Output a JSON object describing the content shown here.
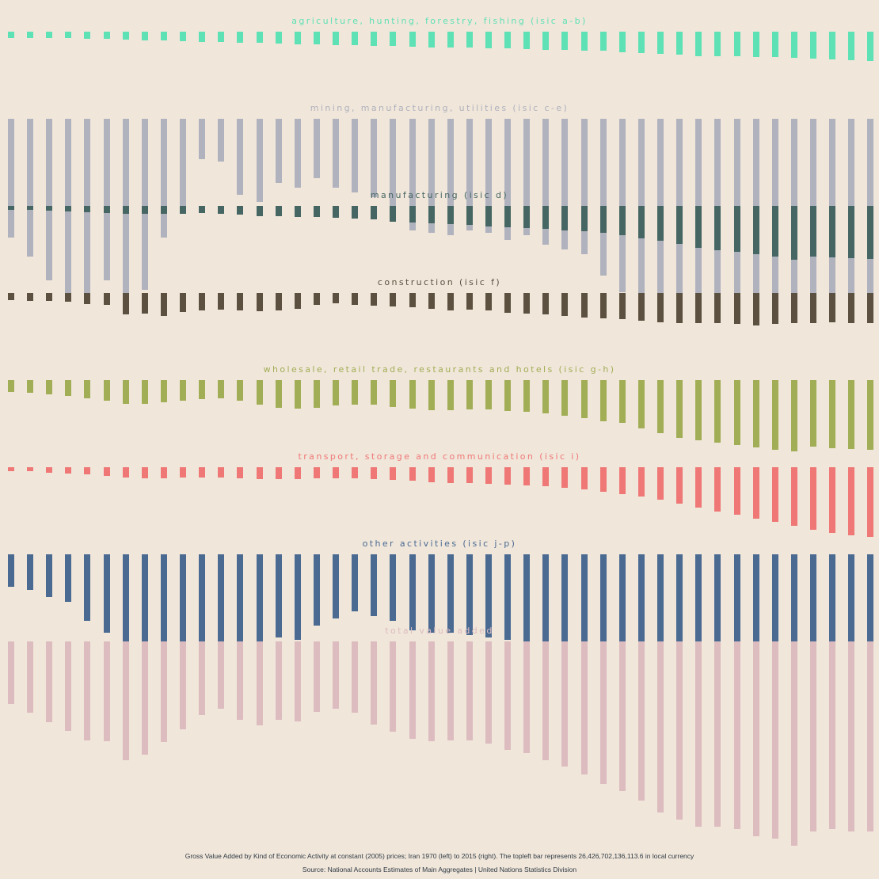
{
  "chart_data": [
    {
      "type": "bar",
      "title": "AGRICULTURE, HUNTING, FORESTRY, FISHING (ISIC A-B)",
      "color": "#5EE1B5",
      "x": [
        1970,
        1971,
        1972,
        1973,
        1974,
        1975,
        1976,
        1977,
        1978,
        1979,
        1980,
        1981,
        1982,
        1983,
        1984,
        1985,
        1986,
        1987,
        1988,
        1989,
        1990,
        1991,
        1992,
        1993,
        1994,
        1995,
        1996,
        1997,
        1998,
        1999,
        2000,
        2001,
        2002,
        2003,
        2004,
        2005,
        2006,
        2007,
        2008,
        2009,
        2010,
        2011,
        2012,
        2013,
        2014,
        2015
      ],
      "values": [
        2.5,
        2.6,
        2.7,
        2.8,
        3.0,
        3.1,
        3.3,
        3.6,
        3.7,
        4.0,
        4.2,
        4.4,
        4.6,
        4.8,
        5.0,
        5.2,
        5.4,
        5.6,
        5.7,
        5.9,
        6.1,
        6.3,
        6.5,
        6.6,
        6.8,
        6.9,
        7.1,
        7.3,
        7.5,
        7.6,
        7.9,
        8.1,
        8.5,
        8.9,
        9.3,
        9.8,
        10.3,
        10.2,
        10.3,
        10.7,
        10.8,
        11.0,
        11.3,
        11.6,
        11.9,
        12.2
      ]
    },
    {
      "type": "bar",
      "title": "MINING, MANUFACTURING, UTILITIES (ISIC C-E)",
      "color": "#B0B2BE",
      "x": [
        1970,
        1971,
        1972,
        1973,
        1974,
        1975,
        1976,
        1977,
        1978,
        1979,
        1980,
        1981,
        1982,
        1983,
        1984,
        1985,
        1986,
        1987,
        1988,
        1989,
        1990,
        1991,
        1992,
        1993,
        1994,
        1995,
        1996,
        1997,
        1998,
        1999,
        2000,
        2001,
        2002,
        2003,
        2004,
        2005,
        2006,
        2007,
        2008,
        2009,
        2010,
        2011,
        2012,
        2013,
        2014,
        2015
      ],
      "values": [
        50,
        58,
        68,
        77,
        76,
        68,
        79,
        72,
        50,
        38,
        17,
        18,
        32,
        35,
        27,
        29,
        25,
        29,
        31,
        33,
        40,
        47,
        48,
        49,
        47,
        48,
        51,
        49,
        53,
        55,
        57,
        66,
        73,
        74,
        76,
        78,
        79,
        80,
        84,
        86,
        78,
        76,
        79,
        79,
        79,
        79
      ]
    },
    {
      "type": "bar",
      "title": "MANUFACTURING (ISIC D)",
      "color": "#466663",
      "x": [
        1970,
        1971,
        1972,
        1973,
        1974,
        1975,
        1976,
        1977,
        1978,
        1979,
        1980,
        1981,
        1982,
        1983,
        1984,
        1985,
        1986,
        1987,
        1988,
        1989,
        1990,
        1991,
        1992,
        1993,
        1994,
        1995,
        1996,
        1997,
        1998,
        1999,
        2000,
        2001,
        2002,
        2003,
        2004,
        2005,
        2006,
        2007,
        2008,
        2009,
        2010,
        2011,
        2012,
        2013,
        2014,
        2015
      ],
      "values": [
        1.5,
        1.7,
        2.0,
        2.3,
        2.7,
        3.0,
        3.2,
        3.3,
        3.3,
        3.2,
        3.1,
        3.3,
        3.8,
        4.2,
        4.3,
        4.6,
        4.8,
        5.0,
        5.4,
        5.8,
        6.5,
        7.0,
        7.4,
        7.8,
        8.1,
        8.5,
        8.9,
        9.3,
        9.7,
        10.2,
        10.8,
        11.4,
        12.4,
        13.6,
        14.7,
        16.0,
        17.8,
        18.5,
        19.4,
        20.4,
        21.2,
        22.5,
        21.4,
        21.8,
        22.0,
        22.3
      ]
    },
    {
      "type": "bar",
      "title": "CONSTRUCTION (ISIC F)",
      "color": "#5C5140",
      "x": [
        1970,
        1971,
        1972,
        1973,
        1974,
        1975,
        1976,
        1977,
        1978,
        1979,
        1980,
        1981,
        1982,
        1983,
        1984,
        1985,
        1986,
        1987,
        1988,
        1989,
        1990,
        1991,
        1992,
        1993,
        1994,
        1995,
        1996,
        1997,
        1998,
        1999,
        2000,
        2001,
        2002,
        2003,
        2004,
        2005,
        2006,
        2007,
        2008,
        2009,
        2010,
        2011,
        2012,
        2013,
        2014,
        2015
      ],
      "values": [
        3.0,
        3.2,
        3.4,
        3.8,
        4.5,
        5.0,
        9.0,
        8.5,
        9.5,
        8.0,
        7.2,
        7.0,
        7.3,
        7.8,
        7.2,
        6.5,
        5.0,
        4.3,
        5.0,
        5.3,
        5.7,
        6.0,
        6.5,
        7.2,
        7.0,
        7.4,
        8.3,
        8.6,
        9.0,
        9.6,
        10.3,
        10.6,
        11.0,
        11.8,
        12.3,
        12.8,
        12.5,
        12.7,
        13.0,
        13.5,
        13.0,
        12.7,
        12.5,
        12.3,
        12.5,
        12.8
      ]
    },
    {
      "type": "bar",
      "title": "WHOLESALE, RETAIL TRADE, RESTAURANTS AND HOTELS (ISIC G-H)",
      "color": "#A2AE56",
      "x": [
        1970,
        1971,
        1972,
        1973,
        1974,
        1975,
        1976,
        1977,
        1978,
        1979,
        1980,
        1981,
        1982,
        1983,
        1984,
        1985,
        1986,
        1987,
        1988,
        1989,
        1990,
        1991,
        1992,
        1993,
        1994,
        1995,
        1996,
        1997,
        1998,
        1999,
        2000,
        2001,
        2002,
        2003,
        2004,
        2005,
        2006,
        2007,
        2008,
        2009,
        2010,
        2011,
        2012,
        2013,
        2014,
        2015
      ],
      "values": [
        5.0,
        5.3,
        6.1,
        6.6,
        7.5,
        8.6,
        10.0,
        10.0,
        9.4,
        8.6,
        8.0,
        7.6,
        8.5,
        10.2,
        11.5,
        12.0,
        11.5,
        10.8,
        10.4,
        10.3,
        11.4,
        12.0,
        12.6,
        12.5,
        12.3,
        12.4,
        13.0,
        13.4,
        14.1,
        15.0,
        16.1,
        17.2,
        18.0,
        20.2,
        22.3,
        24.3,
        25.2,
        26.3,
        27.2,
        28.4,
        29.2,
        30.0,
        28.0,
        28.8,
        29.0,
        29.3
      ]
    },
    {
      "type": "bar",
      "title": "TRANSPORT, STORAGE AND COMMUNICATION (ISIC I)",
      "color": "#EF7876",
      "x": [
        1970,
        1971,
        1972,
        1973,
        1974,
        1975,
        1976,
        1977,
        1978,
        1979,
        1980,
        1981,
        1982,
        1983,
        1984,
        1985,
        1986,
        1987,
        1988,
        1989,
        1990,
        1991,
        1992,
        1993,
        1994,
        1995,
        1996,
        1997,
        1998,
        1999,
        2000,
        2001,
        2002,
        2003,
        2004,
        2005,
        2006,
        2007,
        2008,
        2009,
        2010,
        2011,
        2012,
        2013,
        2014,
        2015
      ],
      "values": [
        1.5,
        1.8,
        2.2,
        2.6,
        3.1,
        3.6,
        4.2,
        4.6,
        4.6,
        4.4,
        4.2,
        4.4,
        4.8,
        5.0,
        5.1,
        5.0,
        4.8,
        4.6,
        4.7,
        4.9,
        5.3,
        5.8,
        6.3,
        6.6,
        6.8,
        7.0,
        7.3,
        7.6,
        8.0,
        8.7,
        9.4,
        10.2,
        11.2,
        12.4,
        13.7,
        15.4,
        17.0,
        18.5,
        20.0,
        21.6,
        23.0,
        24.6,
        26.4,
        27.8,
        28.5,
        29.2
      ]
    },
    {
      "type": "bar",
      "title": "OTHER ACTIVITIES (ISIC J-P)",
      "color": "#4A6A92",
      "x": [
        1970,
        1971,
        1972,
        1973,
        1974,
        1975,
        1976,
        1977,
        1978,
        1979,
        1980,
        1981,
        1982,
        1983,
        1984,
        1985,
        1986,
        1987,
        1988,
        1989,
        1990,
        1991,
        1992,
        1993,
        1994,
        1995,
        1996,
        1997,
        1998,
        1999,
        2000,
        2001,
        2002,
        2003,
        2004,
        2005,
        2006,
        2007,
        2008,
        2009,
        2010,
        2011,
        2012,
        2013,
        2014,
        2015
      ],
      "values": [
        13.5,
        15.0,
        18.0,
        20.0,
        28.0,
        33.0,
        38.0,
        41.0,
        43.0,
        44.0,
        45.0,
        43.0,
        37.0,
        37.0,
        35.0,
        36.0,
        30.0,
        27.0,
        24.0,
        26.0,
        28.0,
        32.0,
        33.0,
        33.0,
        34.0,
        35.0,
        36.0,
        38.0,
        39.0,
        40.0,
        40.0,
        40.0,
        46.0,
        48.0,
        50.0,
        53.0,
        64.0,
        65.0,
        64.0,
        66.0,
        68.0,
        70.0,
        73.0,
        74.0,
        74.0,
        75.0
      ]
    },
    {
      "type": "bar",
      "title": "TOTAL VALUE ADDED",
      "color": "#DDBCC0",
      "x": [
        1970,
        1971,
        1972,
        1973,
        1974,
        1975,
        1976,
        1977,
        1978,
        1979,
        1980,
        1981,
        1982,
        1983,
        1984,
        1985,
        1986,
        1987,
        1988,
        1989,
        1990,
        1991,
        1992,
        1993,
        1994,
        1995,
        1996,
        1997,
        1998,
        1999,
        2000,
        2001,
        2002,
        2003,
        2004,
        2005,
        2006,
        2007,
        2008,
        2009,
        2010,
        2011,
        2012,
        2013,
        2014,
        2015
      ],
      "values": [
        26.43,
        29.9,
        34.1,
        37.7,
        41.8,
        42.1,
        49.9,
        47.8,
        42.3,
        37.1,
        30.9,
        28.2,
        33.1,
        35.4,
        33.1,
        33.7,
        29.5,
        28.3,
        30.0,
        35.0,
        38.0,
        41.0,
        42.0,
        41.5,
        41.8,
        42.9,
        45.6,
        46.9,
        49.9,
        52.6,
        56.0,
        60.0,
        63.0,
        67.0,
        72.0,
        75.0,
        78.0,
        78.0,
        79.0,
        82.0,
        83.0,
        86.0,
        80.0,
        79.0,
        80.0,
        80.0
      ]
    }
  ],
  "footer": {
    "line1": "Gross Value Added by Kind of Economic Activity at constant (2005) prices; Iran 1970 (left) to 2015 (right). The topleft bar represents 26,426,702,136,113.6 in local currency",
    "line2": "Source: National Accounts Estimates of Main Aggregates | United Nations Statistics Division"
  }
}
